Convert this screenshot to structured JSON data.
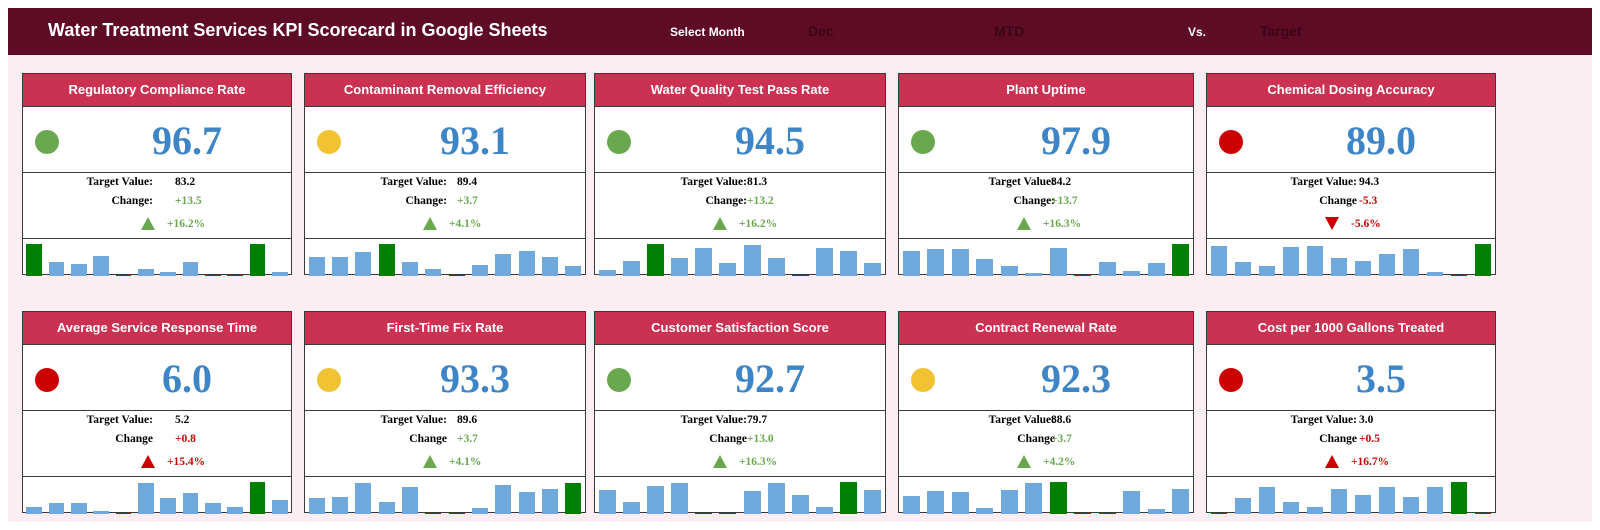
{
  "header": {
    "title": "Water Treatment Services KPI Scorecard in Google Sheets",
    "select_month_label": "Select Month",
    "month": "Dec",
    "period": "MTD",
    "vs_label": "Vs.",
    "compare": "Target"
  },
  "colors": {
    "green": "#6aa84f",
    "yellow": "#f1c232",
    "red": "#cc0000",
    "bar": "#6fa8dc",
    "bar_highlight": "#008000"
  },
  "cards": [
    {
      "title": "Regulatory Compliance Rate",
      "value": "96.7",
      "status": "green",
      "target_label": "Target Value:",
      "target": "83.2",
      "change_label": "Change:",
      "change": "+13.5",
      "change_color": "green",
      "arrow": "up",
      "arrow_color": "green",
      "pct": "+16.2%",
      "pct_color": "green",
      "bars": [
        0.95,
        0.4,
        0.36,
        0.6,
        0,
        0.2,
        0.12,
        0.4,
        0,
        0,
        0.95,
        0.12
      ],
      "highlight": [
        0,
        10
      ]
    },
    {
      "title": "Contaminant Removal Efficiency",
      "value": "93.1",
      "status": "yellow",
      "target_label": "Target Value:",
      "target": "89.4",
      "change_label": "Change:",
      "change": "+3.7",
      "change_color": "green",
      "arrow": "up",
      "arrow_color": "green",
      "pct": "+4.1%",
      "pct_color": "green",
      "bars": [
        0.55,
        0.55,
        0.7,
        0.95,
        0.4,
        0.22,
        0,
        0.32,
        0.65,
        0.75,
        0.55,
        0.28
      ],
      "highlight": [
        3
      ]
    },
    {
      "title": "Water Quality Test Pass Rate",
      "value": "94.5",
      "status": "green",
      "target_label": "Target Value:",
      "target": "81.3",
      "change_label": "Change:",
      "change": "+13.2",
      "change_color": "green",
      "arrow": "up",
      "arrow_color": "green",
      "pct": "+16.2%",
      "pct_color": "green",
      "bars": [
        0.18,
        0.45,
        0.95,
        0.52,
        0.82,
        0.38,
        0.92,
        0.52,
        0,
        0.82,
        0.75,
        0.38
      ],
      "highlight": [
        2
      ]
    },
    {
      "title": "Plant Uptime",
      "value": "97.9",
      "status": "green",
      "target_label": "Target Value:",
      "target": "84.2",
      "change_label": "Change:",
      "change": "+13.7",
      "change_color": "green",
      "arrow": "up",
      "arrow_color": "green",
      "pct": "+16.3%",
      "pct_color": "green",
      "bars": [
        0.75,
        0.78,
        0.78,
        0.5,
        0.28,
        0.08,
        0.82,
        0,
        0.42,
        0.15,
        0.38,
        0.95
      ],
      "highlight": [
        11
      ]
    },
    {
      "title": "Chemical Dosing Accuracy",
      "value": "89.0",
      "status": "red",
      "target_label": "Target Value:",
      "target": "94.3",
      "change_label": "Change",
      "change": "-5.3",
      "change_color": "red",
      "arrow": "down",
      "arrow_color": "red",
      "pct": "-5.6%",
      "pct_color": "red",
      "bars": [
        0.88,
        0.42,
        0.3,
        0.85,
        0.88,
        0.52,
        0.45,
        0.65,
        0.78,
        0.12,
        0,
        0.95
      ],
      "highlight": [
        11
      ]
    },
    {
      "title": "Average Service Response Time",
      "value": "6.0",
      "status": "red",
      "target_label": "Target Value:",
      "target": "5.2",
      "change_label": "Change",
      "change": "+0.8",
      "change_color": "red",
      "arrow": "up",
      "arrow_color": "red",
      "pct": "+15.4%",
      "pct_color": "red",
      "bars": [
        0.2,
        0.32,
        0.32,
        0.1,
        0,
        0.9,
        0.48,
        0.62,
        0.32,
        0.2,
        0.95,
        0.4
      ],
      "highlight": [
        10
      ]
    },
    {
      "title": "First-Time Fix Rate",
      "value": "93.3",
      "status": "yellow",
      "target_label": "Target Value:",
      "target": "89.6",
      "change_label": "Change",
      "change": "+3.7",
      "change_color": "green",
      "arrow": "up",
      "arrow_color": "green",
      "pct": "+4.1%",
      "pct_color": "green",
      "bars": [
        0.48,
        0.5,
        0.92,
        0.35,
        0.78,
        0,
        0,
        0.18,
        0.85,
        0.65,
        0.75,
        0.92
      ],
      "highlight": [
        11
      ]
    },
    {
      "title": "Customer Satisfaction Score",
      "value": "92.7",
      "status": "green",
      "target_label": "Target Value:",
      "target": "79.7",
      "change_label": "Change",
      "change": "+13.0",
      "change_color": "green",
      "arrow": "up",
      "arrow_color": "green",
      "pct": "+16.3%",
      "pct_color": "green",
      "bars": [
        0.7,
        0.35,
        0.82,
        0.9,
        0,
        0,
        0.68,
        0.9,
        0.55,
        0.2,
        0.95,
        0.72
      ],
      "highlight": [
        10
      ]
    },
    {
      "title": "Contract Renewal Rate",
      "value": "92.3",
      "status": "yellow",
      "target_label": "Target Value:",
      "target": "88.6",
      "change_label": "Change",
      "change": "+3.7",
      "change_color": "green",
      "arrow": "up",
      "arrow_color": "green",
      "pct": "+4.2%",
      "pct_color": "green",
      "bars": [
        0.52,
        0.68,
        0.65,
        0.18,
        0.72,
        0.9,
        0.95,
        0,
        0,
        0.68,
        0.15,
        0.75
      ],
      "highlight": [
        6
      ]
    },
    {
      "title": "Cost per 1000 Gallons Treated",
      "value": "3.5",
      "status": "red",
      "target_label": "Target Value:",
      "target": "3.0",
      "change_label": "Change",
      "change": "+0.5",
      "change_color": "red",
      "arrow": "up",
      "arrow_color": "red",
      "pct": "+16.7%",
      "pct_color": "red",
      "bars": [
        0,
        0.48,
        0.78,
        0.35,
        0.22,
        0.75,
        0.55,
        0.78,
        0.5,
        0.78,
        0.95,
        0
      ],
      "highlight": [
        10
      ]
    }
  ]
}
